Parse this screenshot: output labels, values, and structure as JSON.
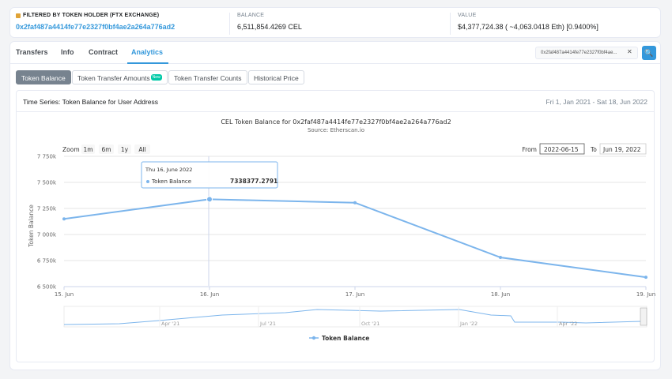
{
  "holder": {
    "label": "FILTERED BY TOKEN HOLDER (FTX Exchange)",
    "address": "0x2faf487a4414fe77e2327f0bf4ae2a264a776ad2"
  },
  "balance": {
    "label": "BALANCE",
    "value": "6,511,854.4269 CEL"
  },
  "value": {
    "label": "VALUE",
    "value": "$4,377,724.38 ( ~4,063.0418 Eth) [0.9400%]"
  },
  "tabs": [
    "Transfers",
    "Info",
    "Contract",
    "Analytics"
  ],
  "search": {
    "value": "0x2faf487a4414fe77e2327f0bf4ae...",
    "clear": "✕",
    "button": "🔍"
  },
  "subtabs": [
    {
      "label": "Token Balance"
    },
    {
      "label": "Token Transfer Amounts",
      "badge": "New"
    },
    {
      "label": "Token Transfer Counts"
    },
    {
      "label": "Historical Price"
    }
  ],
  "panel": {
    "title": "Time Series: Token Balance for User Address",
    "range": "Fri 1, Jan 2021 - Sat 18, Jun 2022"
  },
  "zoom": {
    "label": "Zoom",
    "options": [
      "1m",
      "6m",
      "1y",
      "All"
    ]
  },
  "date_range": {
    "from_label": "From",
    "from_value": "2022-06-15",
    "to_label": "To",
    "to_value": "Jun 19, 2022"
  },
  "tooltip": {
    "date": "Thu 16, June 2022",
    "series": "Token Balance",
    "value": "7338377.2791"
  },
  "navigator_labels": [
    "Apr '21",
    "Jul '21",
    "Oct '21",
    "Jan '22",
    "Apr '22"
  ],
  "colors": {
    "accent": "#3498db",
    "series": "#7cb5ec"
  },
  "chart_data": {
    "type": "line",
    "title": "CEL Token Balance for 0x2faf487a4414fe77e2327f0bf4ae2a264a776ad2",
    "subtitle": "Source: Etherscan.io",
    "ylabel": "Token Balance",
    "x": [
      "2022-06-15",
      "2022-06-16",
      "2022-06-17",
      "2022-06-18",
      "2022-06-19"
    ],
    "xticks": [
      "15. Jun",
      "16. Jun",
      "17. Jun",
      "18. Jun",
      "19. Jun"
    ],
    "yticks": [
      "6 500k",
      "6 750k",
      "7 000k",
      "7 250k",
      "7 500k",
      "7 750k"
    ],
    "ylim": [
      6500000,
      7750000
    ],
    "series": [
      {
        "name": "Token Balance",
        "values": [
          7150000,
          7338377.2791,
          7305000,
          6780000,
          6590000
        ]
      }
    ],
    "legend": "bottom-center",
    "grid": true
  }
}
